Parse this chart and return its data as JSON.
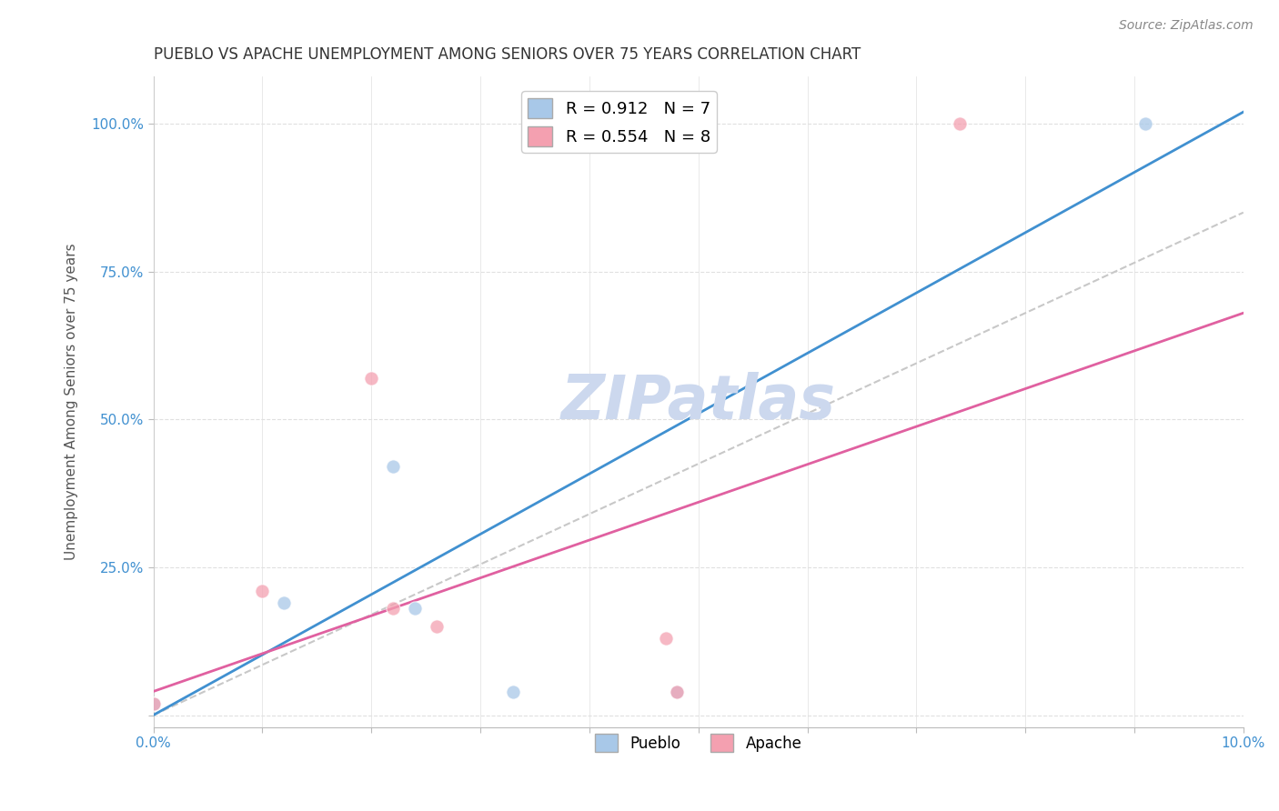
{
  "title": "PUEBLO VS APACHE UNEMPLOYMENT AMONG SENIORS OVER 75 YEARS CORRELATION CHART",
  "source": "Source: ZipAtlas.com",
  "ylabel": "Unemployment Among Seniors over 75 years",
  "xlim": [
    0.0,
    0.1
  ],
  "ylim": [
    -0.02,
    1.08
  ],
  "xticks": [
    0.0,
    0.01,
    0.02,
    0.03,
    0.04,
    0.05,
    0.06,
    0.07,
    0.08,
    0.09,
    0.1
  ],
  "xticklabels": [
    "0.0%",
    "",
    "",
    "",
    "",
    "",
    "",
    "",
    "",
    "",
    "10.0%"
  ],
  "yticks": [
    0.0,
    0.25,
    0.5,
    0.75,
    1.0
  ],
  "yticklabels": [
    "",
    "25.0%",
    "50.0%",
    "75.0%",
    "100.0%"
  ],
  "pueblo_color": "#a8c8e8",
  "apache_color": "#f4a0b0",
  "pueblo_line_color": "#4090d0",
  "apache_line_color": "#e060a0",
  "diagonal_color": "#c8c8c8",
  "pueblo_R": 0.912,
  "pueblo_N": 7,
  "apache_R": 0.554,
  "apache_N": 8,
  "pueblo_points": [
    [
      0.0,
      0.02
    ],
    [
      0.012,
      0.19
    ],
    [
      0.022,
      0.42
    ],
    [
      0.024,
      0.18
    ],
    [
      0.033,
      0.04
    ],
    [
      0.048,
      0.04
    ],
    [
      0.091,
      1.0
    ]
  ],
  "apache_points": [
    [
      0.0,
      0.02
    ],
    [
      0.01,
      0.21
    ],
    [
      0.02,
      0.57
    ],
    [
      0.022,
      0.18
    ],
    [
      0.026,
      0.15
    ],
    [
      0.047,
      0.13
    ],
    [
      0.048,
      0.04
    ],
    [
      0.074,
      1.0
    ]
  ],
  "pueblo_line_x": [
    0.0,
    0.1
  ],
  "pueblo_line_y": [
    0.0,
    1.02
  ],
  "apache_line_x": [
    0.0,
    0.1
  ],
  "apache_line_y": [
    0.04,
    0.68
  ],
  "diag_line_x": [
    0.0,
    0.1
  ],
  "diag_line_y": [
    0.0,
    0.85
  ],
  "watermark": "ZIPatlas",
  "watermark_color": "#ccd8ee",
  "background_color": "#ffffff",
  "grid_color": "#e0e0e0",
  "tick_color": "#4090d0",
  "ylabel_color": "#555555",
  "title_color": "#333333",
  "source_color": "#888888"
}
